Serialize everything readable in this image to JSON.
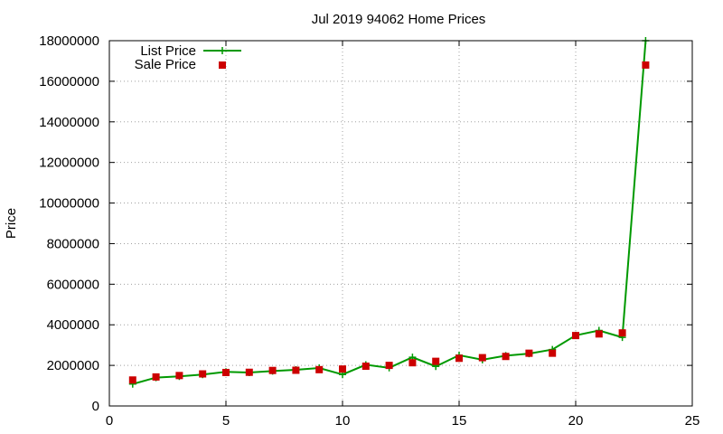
{
  "chart_data": {
    "type": "line",
    "title": "Jul 2019 94062 Home Prices",
    "xlabel": "",
    "ylabel": "Price",
    "xlim": [
      0,
      25
    ],
    "ylim": [
      0,
      18000000
    ],
    "xticks": [
      0,
      5,
      10,
      15,
      20,
      25
    ],
    "yticks": [
      0,
      2000000,
      4000000,
      6000000,
      8000000,
      10000000,
      12000000,
      14000000,
      16000000,
      18000000
    ],
    "grid": true,
    "legend_position": "top-left",
    "x": [
      1,
      2,
      3,
      4,
      5,
      6,
      7,
      8,
      9,
      10,
      11,
      12,
      13,
      14,
      15,
      16,
      17,
      18,
      19,
      20,
      21,
      22,
      23
    ],
    "series": [
      {
        "name": "List Price",
        "style": "line-with-plus-markers",
        "color": "#009900",
        "values": [
          1080000,
          1400000,
          1460000,
          1550000,
          1680000,
          1650000,
          1720000,
          1780000,
          1870000,
          1550000,
          2030000,
          1880000,
          2400000,
          1950000,
          2500000,
          2280000,
          2480000,
          2580000,
          2780000,
          3480000,
          3720000,
          3380000,
          18000000
        ]
      },
      {
        "name": "Sale Price",
        "style": "square-markers",
        "color": "#cc0000",
        "values": [
          1280000,
          1430000,
          1500000,
          1580000,
          1650000,
          1660000,
          1750000,
          1760000,
          1790000,
          1820000,
          1960000,
          2000000,
          2130000,
          2200000,
          2350000,
          2380000,
          2440000,
          2600000,
          2600000,
          3470000,
          3550000,
          3600000,
          16800000
        ]
      }
    ]
  }
}
